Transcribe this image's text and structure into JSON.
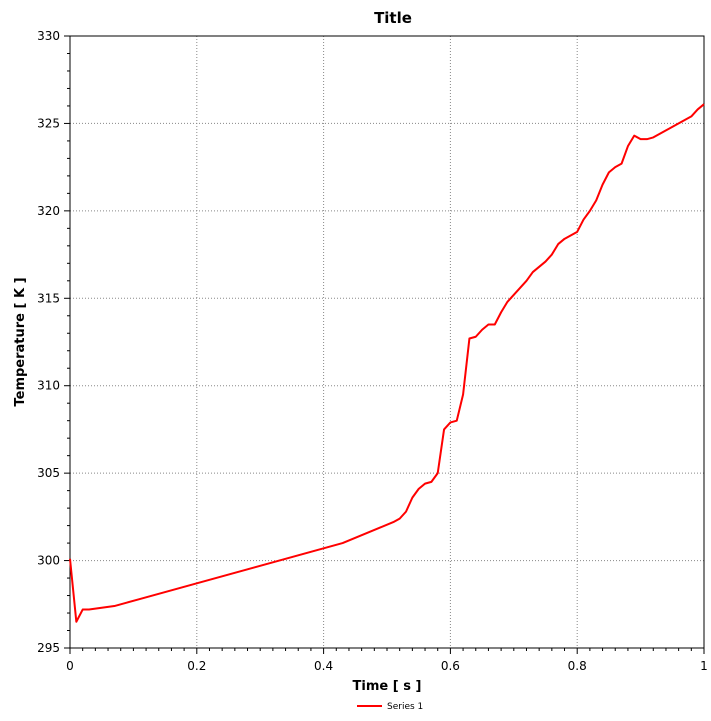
{
  "chart_data": {
    "type": "line",
    "title": "Title",
    "xlabel": "Time [ s ]",
    "ylabel": "Temperature [ K ]",
    "xlim": [
      0,
      1
    ],
    "ylim": [
      295,
      330
    ],
    "xticks": [
      0,
      0.2,
      0.4,
      0.6,
      0.8,
      1
    ],
    "xtick_labels": [
      "0",
      "0.2",
      "0.4",
      "0.6",
      "0.8",
      "1"
    ],
    "yticks": [
      295,
      300,
      305,
      310,
      315,
      320,
      325,
      330
    ],
    "ytick_labels": [
      "295",
      "300",
      "305",
      "310",
      "315",
      "320",
      "325",
      "330"
    ],
    "grid": true,
    "legend_position": "bottom-center",
    "series": [
      {
        "name": "Series 1",
        "color": "#ff0000",
        "x": [
          0,
          0.01,
          0.02,
          0.03,
          0.05,
          0.07,
          0.09,
          0.11,
          0.13,
          0.15,
          0.17,
          0.19,
          0.21,
          0.23,
          0.25,
          0.27,
          0.29,
          0.31,
          0.33,
          0.35,
          0.37,
          0.39,
          0.41,
          0.43,
          0.45,
          0.47,
          0.49,
          0.51,
          0.52,
          0.53,
          0.54,
          0.55,
          0.56,
          0.57,
          0.58,
          0.59,
          0.6,
          0.61,
          0.62,
          0.63,
          0.64,
          0.65,
          0.66,
          0.67,
          0.68,
          0.69,
          0.7,
          0.71,
          0.72,
          0.73,
          0.74,
          0.75,
          0.76,
          0.77,
          0.78,
          0.79,
          0.8,
          0.81,
          0.82,
          0.83,
          0.84,
          0.85,
          0.86,
          0.87,
          0.88,
          0.89,
          0.9,
          0.91,
          0.92,
          0.93,
          0.94,
          0.95,
          0.96,
          0.97,
          0.98,
          0.99,
          1.0
        ],
        "y": [
          300.1,
          296.5,
          297.2,
          297.2,
          297.3,
          297.4,
          297.6,
          297.8,
          298.0,
          298.2,
          298.4,
          298.6,
          298.8,
          299.0,
          299.2,
          299.4,
          299.6,
          299.8,
          300.0,
          300.2,
          300.4,
          300.6,
          300.8,
          301.0,
          301.3,
          301.6,
          301.9,
          302.2,
          302.4,
          302.8,
          303.6,
          304.1,
          304.4,
          304.5,
          305.0,
          307.5,
          307.9,
          308.0,
          309.5,
          312.7,
          312.8,
          313.2,
          313.5,
          313.5,
          314.2,
          314.8,
          315.2,
          315.6,
          316.0,
          316.5,
          316.8,
          317.1,
          317.5,
          318.1,
          318.4,
          318.6,
          318.8,
          319.5,
          320.0,
          320.6,
          321.5,
          322.2,
          322.5,
          322.7,
          323.7,
          324.3,
          324.1,
          324.1,
          324.2,
          324.4,
          324.6,
          324.8,
          325.0,
          325.2,
          325.4,
          325.8,
          326.1
        ]
      }
    ]
  }
}
